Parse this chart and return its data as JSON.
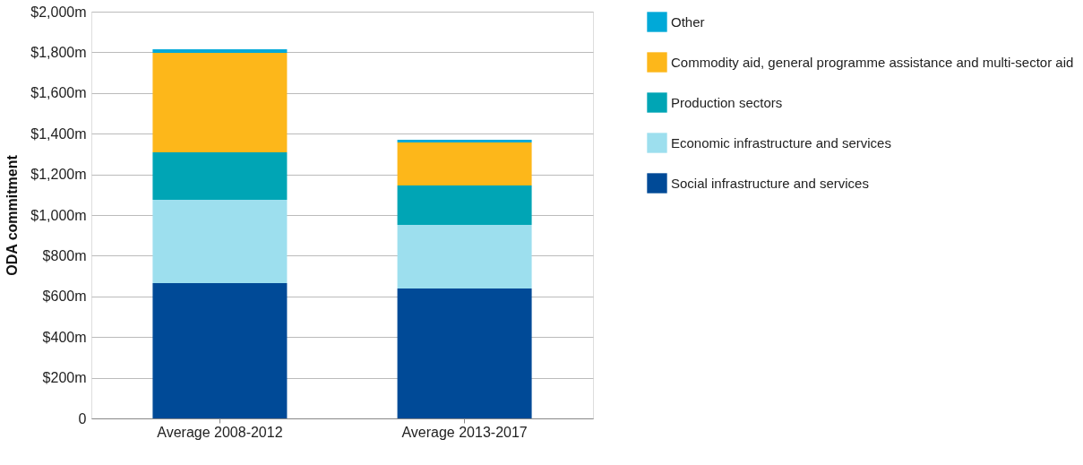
{
  "chart_data": {
    "type": "bar",
    "stacked": true,
    "ylabel": "ODA commitment",
    "categories": [
      "Average 2008-2012",
      "Average 2013-2017"
    ],
    "series": [
      {
        "name": "Social infrastructure and services",
        "color": "#004a97",
        "values": [
          665,
          639
        ]
      },
      {
        "name": "Economic infrastructure and services",
        "color": "#9ddfee",
        "values": [
          410,
          312
        ]
      },
      {
        "name": "Production sectors",
        "color": "#00a5b5",
        "values": [
          233,
          194
        ]
      },
      {
        "name": "Commodity aid, general programme assistance and multi-sector aid",
        "color": "#fdb71a",
        "values": [
          489,
          212
        ]
      },
      {
        "name": "Other",
        "color": "#00a9d8",
        "values": [
          18,
          13
        ]
      }
    ],
    "ylim": [
      0,
      2000
    ],
    "yticks": [
      0,
      {
        "value": 200,
        "label": "$200m"
      },
      {
        "value": 400,
        "label": "$400m"
      },
      {
        "value": 600,
        "label": "$600m"
      },
      {
        "value": 800,
        "label": "$800m"
      },
      {
        "value": 1000,
        "label": "$1,000m"
      },
      {
        "value": 1200,
        "label": "$1,200m"
      },
      {
        "value": 1400,
        "label": "$1,400m"
      },
      {
        "value": 1600,
        "label": "$1,600m"
      },
      {
        "value": 1800,
        "label": "$1,800m"
      },
      {
        "value": 2000,
        "label": "$2,000m"
      }
    ],
    "grid": "y",
    "legend": "right"
  }
}
